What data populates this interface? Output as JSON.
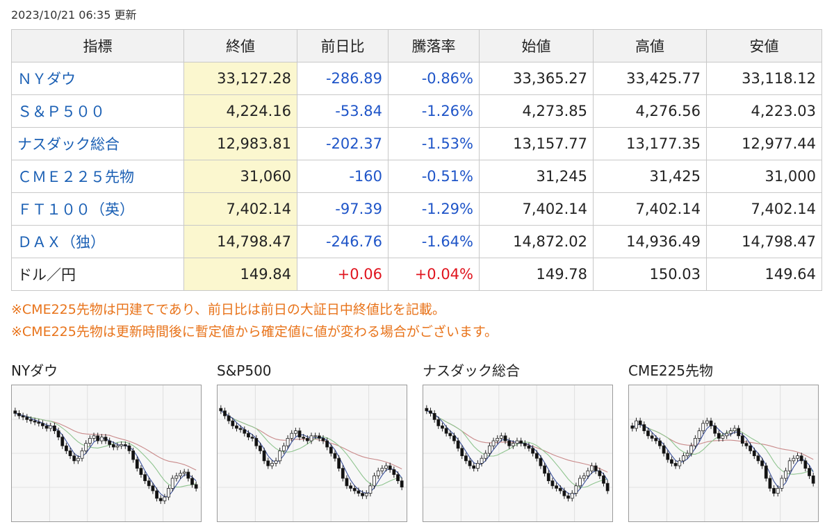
{
  "updated": "2023/10/21 06:35 更新",
  "table": {
    "headers": [
      "指標",
      "終値",
      "前日比",
      "騰落率",
      "始値",
      "高値",
      "安値"
    ],
    "rows": [
      {
        "name": "ＮＹダウ",
        "close": "33,127.28",
        "change": "-286.89",
        "rate": "-0.86%",
        "open": "33,365.27",
        "high": "33,425.77",
        "low": "33,118.12"
      },
      {
        "name": "Ｓ＆Ｐ５００",
        "close": "4,224.16",
        "change": "-53.84",
        "rate": "-1.26%",
        "open": "4,273.85",
        "high": "4,276.56",
        "low": "4,223.03"
      },
      {
        "name": "ナスダック総合",
        "close": "12,983.81",
        "change": "-202.37",
        "rate": "-1.53%",
        "open": "13,157.77",
        "high": "13,177.35",
        "low": "12,977.44"
      },
      {
        "name": "ＣＭＥ２２５先物",
        "close": "31,060",
        "change": "-160",
        "rate": "-0.51%",
        "open": "31,245",
        "high": "31,425",
        "low": "31,000"
      },
      {
        "name": "ＦＴ１００（英）",
        "close": "7,402.14",
        "change": "-97.39",
        "rate": "-1.29%",
        "open": "7,402.14",
        "high": "7,402.14",
        "low": "7,402.14"
      },
      {
        "name": "ＤＡＸ（独）",
        "close": "14,798.47",
        "change": "-246.76",
        "rate": "-1.64%",
        "open": "14,872.02",
        "high": "14,936.49",
        "low": "14,798.47"
      },
      {
        "name": "ドル／円",
        "close": "149.84",
        "change": "+0.06",
        "rate": "+0.04%",
        "open": "149.78",
        "high": "150.03",
        "low": "149.64"
      }
    ]
  },
  "notes": [
    "※CME225先物は円建てであり、前日比は前日の大証日中終値比を記載。",
    "※CME225先物は更新時間後に暫定値から確定値に値が変わる場合がございます。"
  ],
  "charts": [
    {
      "title": "NYダウ",
      "closes": [
        82,
        80,
        79,
        77,
        76,
        75,
        74,
        72,
        70,
        72,
        68,
        63,
        56,
        52,
        48,
        44,
        46,
        52,
        58,
        62,
        64,
        60,
        63,
        60,
        57,
        55,
        56,
        57,
        56,
        52,
        45,
        38,
        33,
        28,
        24,
        20,
        14,
        12,
        15,
        22,
        30,
        32,
        34,
        35,
        30,
        25,
        22
      ]
    },
    {
      "title": "S&P500",
      "closes": [
        84,
        80,
        76,
        72,
        70,
        69,
        66,
        63,
        62,
        56,
        52,
        44,
        40,
        42,
        44,
        52,
        56,
        62,
        66,
        68,
        63,
        62,
        60,
        64,
        64,
        62,
        60,
        55,
        50,
        46,
        38,
        30,
        24,
        22,
        20,
        18,
        16,
        18,
        24,
        32,
        36,
        38,
        40,
        37,
        33,
        28,
        23
      ]
    },
    {
      "title": "ナスダック総合",
      "closes": [
        84,
        82,
        77,
        72,
        70,
        66,
        64,
        60,
        54,
        48,
        44,
        40,
        38,
        42,
        46,
        50,
        56,
        60,
        62,
        64,
        60,
        56,
        58,
        60,
        58,
        56,
        54,
        50,
        46,
        40,
        34,
        28,
        24,
        22,
        20,
        16,
        14,
        18,
        24,
        30,
        32,
        36,
        40,
        36,
        32,
        26,
        20
      ]
    },
    {
      "title": "CME225先物",
      "closes": [
        70,
        76,
        73,
        68,
        64,
        62,
        60,
        56,
        50,
        45,
        42,
        40,
        44,
        48,
        50,
        56,
        62,
        68,
        74,
        76,
        72,
        66,
        62,
        64,
        66,
        68,
        70,
        64,
        58,
        56,
        52,
        48,
        44,
        40,
        30,
        22,
        18,
        22,
        30,
        36,
        44,
        46,
        48,
        44,
        38,
        32,
        26
      ]
    }
  ]
}
